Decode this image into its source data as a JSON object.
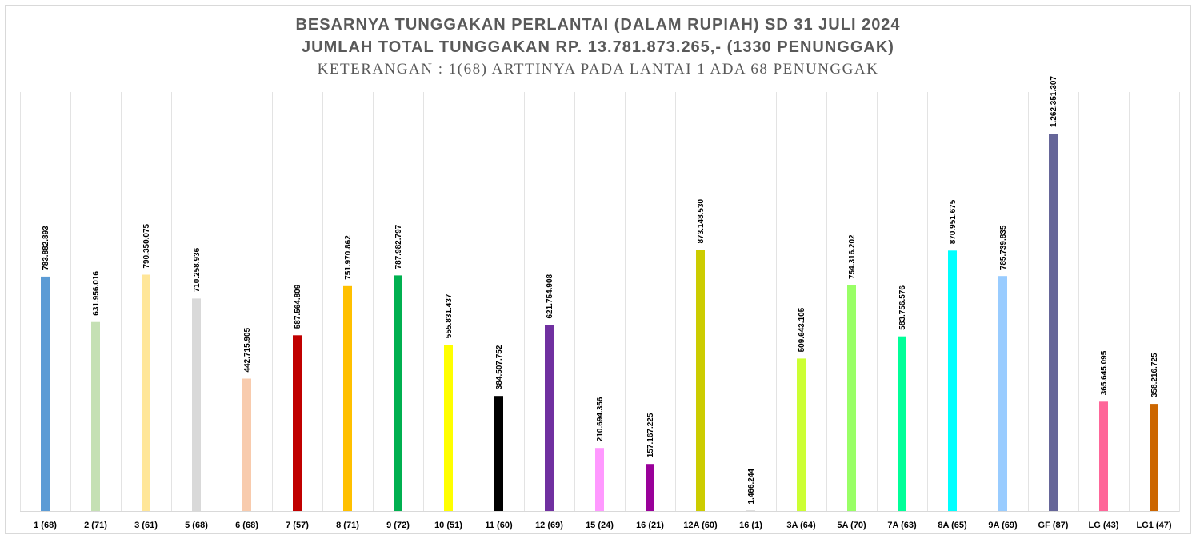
{
  "chart_data": {
    "type": "bar",
    "title": "BESARNYA TUNGGAKAN PERLANTAI (DALAM RUPIAH) SD 31 JULI 2024",
    "subtitle": "JUMLAH TOTAL TUNGGAKAN RP. 13.781.873.265,- (1330 PENUNGGAK)",
    "note": "KETERANGAN : 1(68) ARTTINYA PADA LANTAI 1 ADA 68 PENUNGGAK",
    "categories": [
      "1 (68)",
      "2 (71)",
      "3 (61)",
      "5 (68)",
      "6 (68)",
      "7 (57)",
      "8 (71)",
      "9 (72)",
      "10 (51)",
      "11 (60)",
      "12 (69)",
      "15 (24)",
      "16 (21)",
      "12A (60)",
      "16 (1)",
      "3A (64)",
      "5A (70)",
      "7A (63)",
      "8A (65)",
      "9A (69)",
      "GF (87)",
      "LG (43)",
      "LG1 (47)"
    ],
    "values": [
      783882893,
      631956016,
      790350075,
      710258936,
      442715905,
      587564809,
      751970862,
      787982797,
      555831437,
      384507752,
      621754908,
      210694356,
      157167225,
      873148530,
      1466244,
      509643105,
      754316202,
      583756576,
      870951675,
      785739835,
      1262351307,
      365645095,
      358216725
    ],
    "value_labels": [
      "783.882.893",
      "631.956.016",
      "790.350.075",
      "710.258.936",
      "442.715.905",
      "587.564.809",
      "751.970.862",
      "787.982.797",
      "555.831.437",
      "384.507.752",
      "621.754.908",
      "210.694.356",
      "157.167.225",
      "873.148.530",
      "1.466.244",
      "509.643.105",
      "754.316.202",
      "583.756.576",
      "870.951.675",
      "785.739.835",
      "1.262.351.307",
      "365.645.095",
      "358.216.725"
    ],
    "colors": [
      "#5b9bd5",
      "#c5e0b4",
      "#ffe699",
      "#d9d9d9",
      "#f8cbad",
      "#c00000",
      "#ffc000",
      "#00b050",
      "#ffff00",
      "#000000",
      "#7030a0",
      "#ff99ff",
      "#990099",
      "#cccc00",
      "#bfbfbf",
      "#ccff33",
      "#99ff66",
      "#00ff99",
      "#00ffff",
      "#99ccff",
      "#666699",
      "#ff6699",
      "#cc6600"
    ],
    "ylim": [
      0,
      1400000000
    ],
    "grid": "vertical category separators",
    "legend": "none"
  }
}
